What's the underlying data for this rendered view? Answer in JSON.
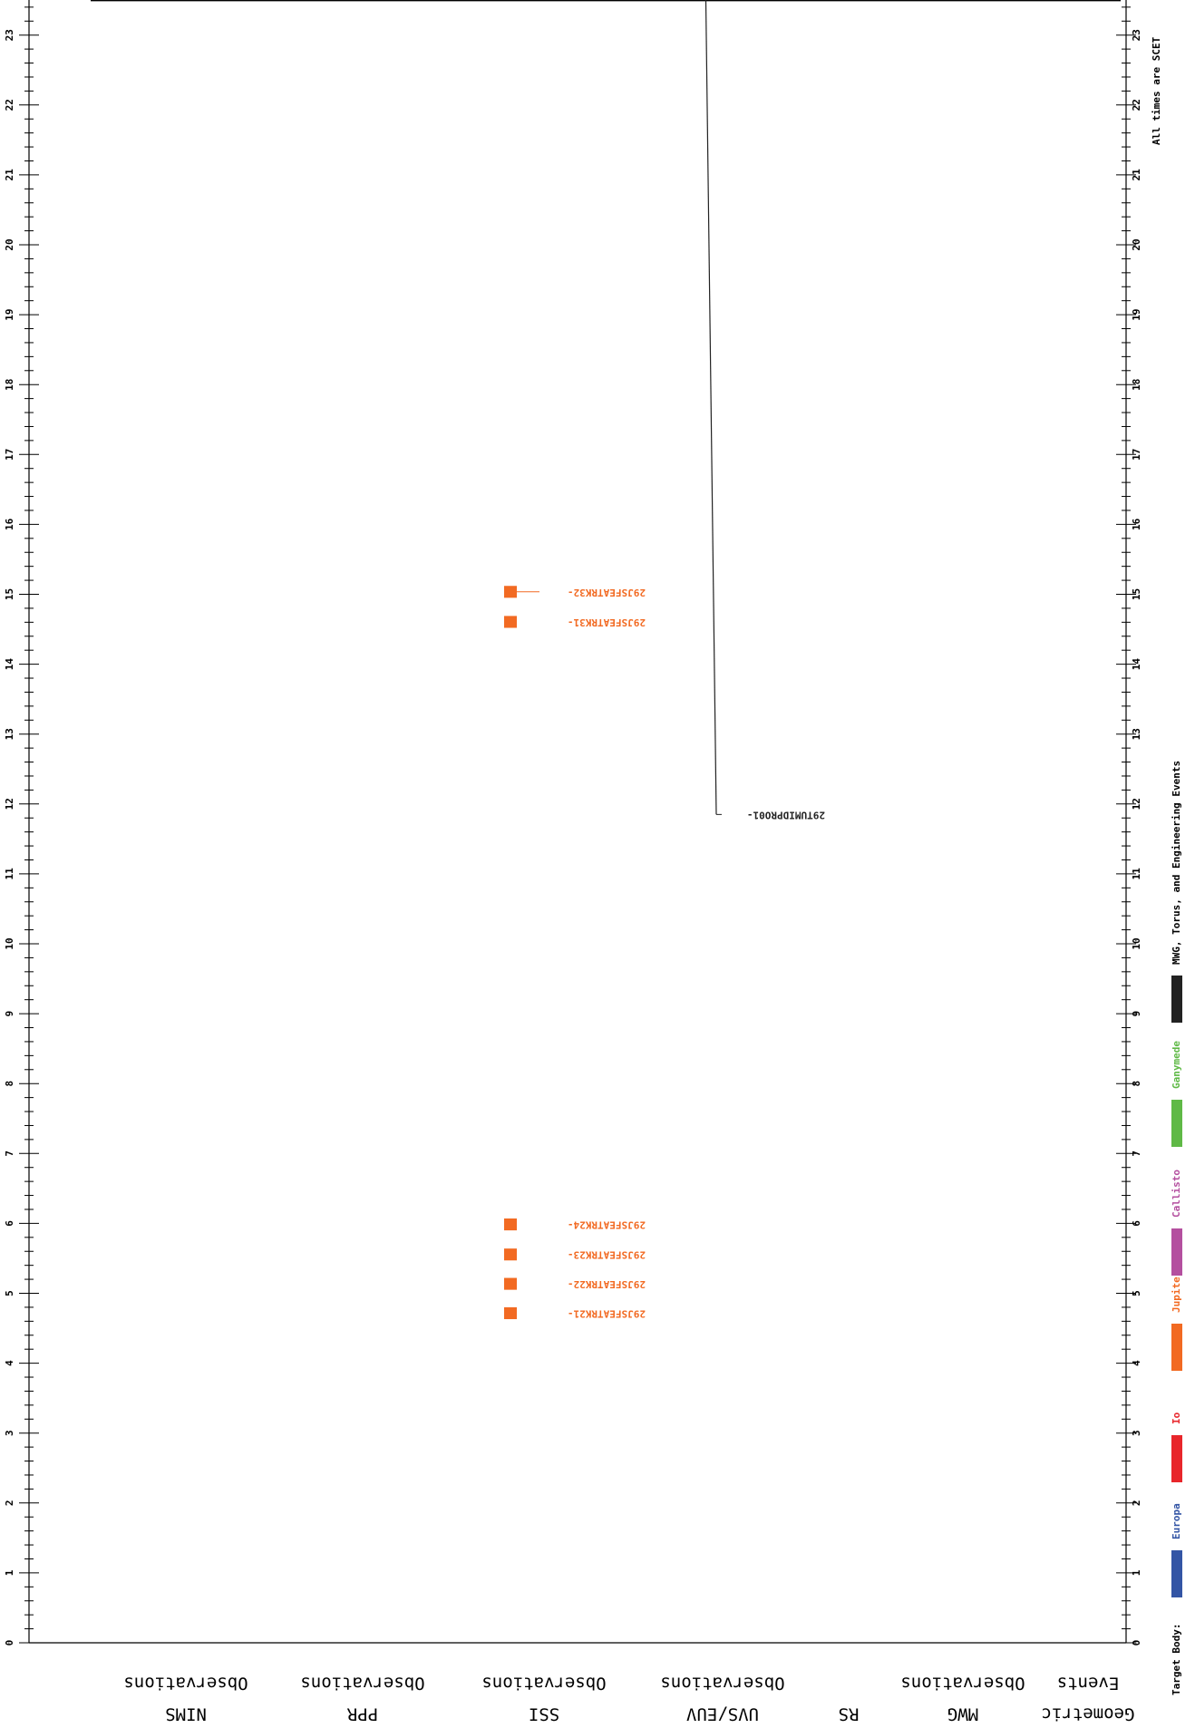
{
  "chart_data": {
    "type": "timeline",
    "hour_range": [
      0,
      24
    ],
    "tick_labels": [
      "0",
      "1",
      "2",
      "3",
      "4",
      "5",
      "6",
      "7",
      "8",
      "9",
      "10",
      "11",
      "12",
      "13",
      "14",
      "15",
      "16",
      "17",
      "18",
      "19",
      "20",
      "21",
      "22",
      "23"
    ],
    "columns": [
      {
        "id": "nims",
        "line1": "NIMS",
        "line2": "Observations"
      },
      {
        "id": "ppr",
        "line1": "PPR",
        "line2": "Observations"
      },
      {
        "id": "ssi",
        "line1": "SSI",
        "line2": "Observations"
      },
      {
        "id": "uvs",
        "line1": "UVS/EUV",
        "line2": "Observations"
      },
      {
        "id": "rs",
        "line1": "RS",
        "line2": ""
      },
      {
        "id": "mwg",
        "line1": "MWG",
        "line2": "Observations"
      },
      {
        "id": "geo",
        "line1": "Geometric",
        "line2": "Events"
      }
    ],
    "observations": [
      {
        "label": "29JSFEATRK21-",
        "column": "ssi",
        "start": 4.63,
        "end": 4.8,
        "target": "Jupiter"
      },
      {
        "label": "29JSFEATRK22-",
        "column": "ssi",
        "start": 5.05,
        "end": 5.22,
        "target": "Jupiter"
      },
      {
        "label": "29JSFEATRK23-",
        "column": "ssi",
        "start": 5.47,
        "end": 5.64,
        "target": "Jupiter"
      },
      {
        "label": "29JSFEATRK24-",
        "column": "ssi",
        "start": 5.9,
        "end": 6.07,
        "target": "Jupiter"
      },
      {
        "label": "29JSFEATRK31-",
        "column": "ssi",
        "start": 14.52,
        "end": 14.69,
        "target": "Jupiter"
      },
      {
        "label": "29JSFEATRK32-",
        "column": "ssi",
        "start": 14.95,
        "end": 15.12,
        "target": "Jupiter"
      },
      {
        "label": "29TUMIDPRO01-",
        "column": "uvs",
        "start": 11.85,
        "end": 24.0,
        "target": "MWG, Torus, and Engineering Events"
      }
    ],
    "legend": {
      "title": "Target Body:",
      "items": [
        {
          "name": "Europa",
          "color": "#3355a5"
        },
        {
          "name": "Io",
          "color": "#e8262b"
        },
        {
          "name": "Jupiter",
          "color": "#f26a22"
        },
        {
          "name": "Callisto",
          "color": "#b44f9f"
        },
        {
          "name": "Ganymede",
          "color": "#5fb946"
        },
        {
          "name": "MWG, Torus, and Engineering Events",
          "color": "#222222"
        }
      ]
    },
    "note": "All times are SCET"
  }
}
